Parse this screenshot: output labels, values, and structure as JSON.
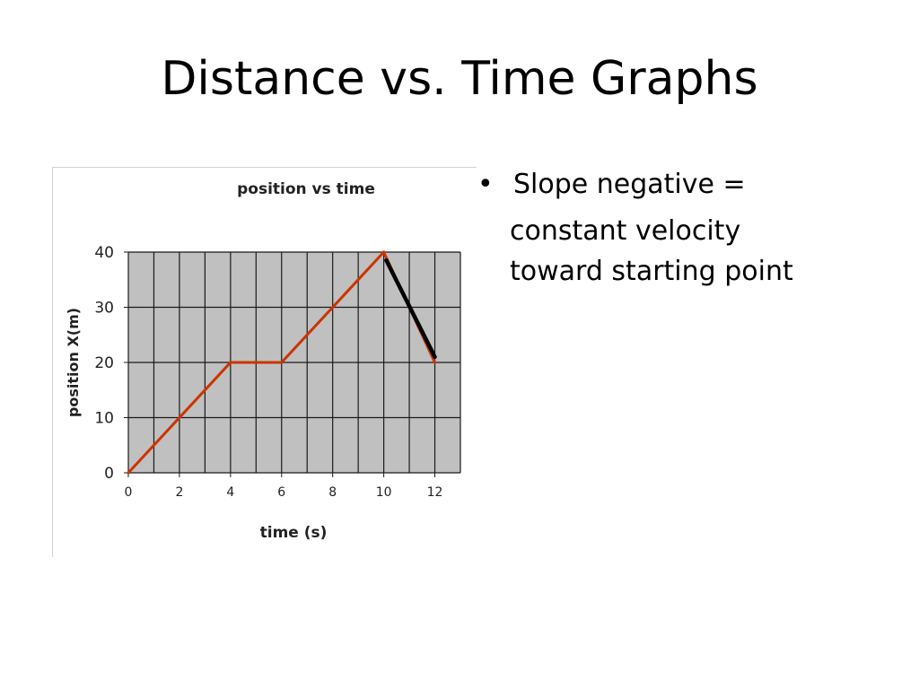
{
  "slide": {
    "title": "Distance vs. Time Graphs",
    "bullet": {
      "symbol": "•",
      "text": "Slope negative =",
      "continuation": [
        "constant velocity",
        "toward starting point"
      ]
    }
  },
  "chart_data": {
    "type": "line",
    "title": "position vs time",
    "xlabel": "time (s)",
    "ylabel": "position X(m)",
    "xlim": [
      0,
      13
    ],
    "ylim": [
      0,
      40
    ],
    "x_ticks": [
      0,
      2,
      4,
      6,
      8,
      10,
      12
    ],
    "y_ticks": [
      0,
      10,
      20,
      30,
      40
    ],
    "grid": true,
    "grid_step_x": 1,
    "grid_step_y": 10,
    "plot_background": "#c0c0c0",
    "series": [
      {
        "color": "#cc3300",
        "x": [
          0,
          4,
          6,
          10,
          12
        ],
        "y": [
          0,
          20,
          20,
          40,
          20
        ]
      }
    ],
    "highlight_segment": {
      "color": "#000000",
      "x": [
        10.1,
        12
      ],
      "y": [
        38.5,
        21
      ]
    }
  }
}
